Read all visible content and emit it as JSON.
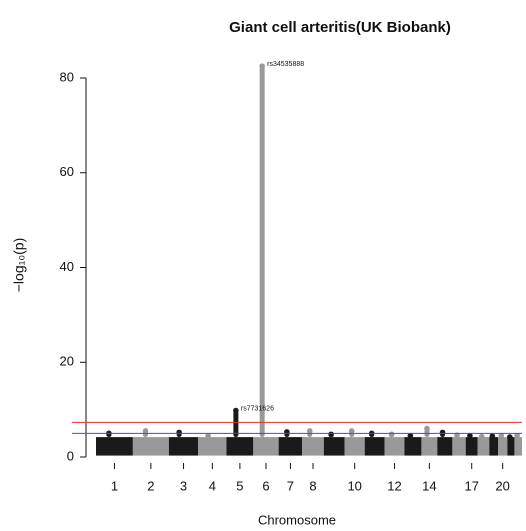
{
  "chart_data": {
    "type": "manhattan",
    "title": "Giant cell arteritis(UK Biobank)",
    "xlabel": "Chromosome",
    "ylabel": "−log₁₀(p)",
    "categories": [
      "1",
      "2",
      "3",
      "4",
      "5",
      "6",
      "7",
      "8",
      null,
      "10",
      null,
      "12",
      null,
      "14",
      null,
      null,
      "17",
      null,
      null,
      "20",
      null,
      null
    ],
    "values": [
      5.0,
      5.5,
      5.2,
      4.5,
      9.8,
      82.5,
      5.3,
      5.5,
      4.8,
      5.5,
      5.0,
      4.8,
      4.5,
      6.0,
      5.2,
      4.6,
      4.5,
      4.3,
      4.4,
      4.5,
      4.2,
      4.5
    ],
    "colors": [
      "#1a1a1a",
      "#999999"
    ],
    "ylim": [
      0,
      83
    ],
    "yticks": [
      0,
      20,
      40,
      60,
      80
    ],
    "hlines": [
      {
        "value": 7.3,
        "color": "#e03030"
      },
      {
        "value": 5,
        "color": "#3050e0"
      }
    ],
    "annotations": [
      {
        "text": "rs34535888",
        "category": "6",
        "y": 82.5
      },
      {
        "text": "rs7731626",
        "category": "5",
        "y": 9.8
      }
    ]
  }
}
